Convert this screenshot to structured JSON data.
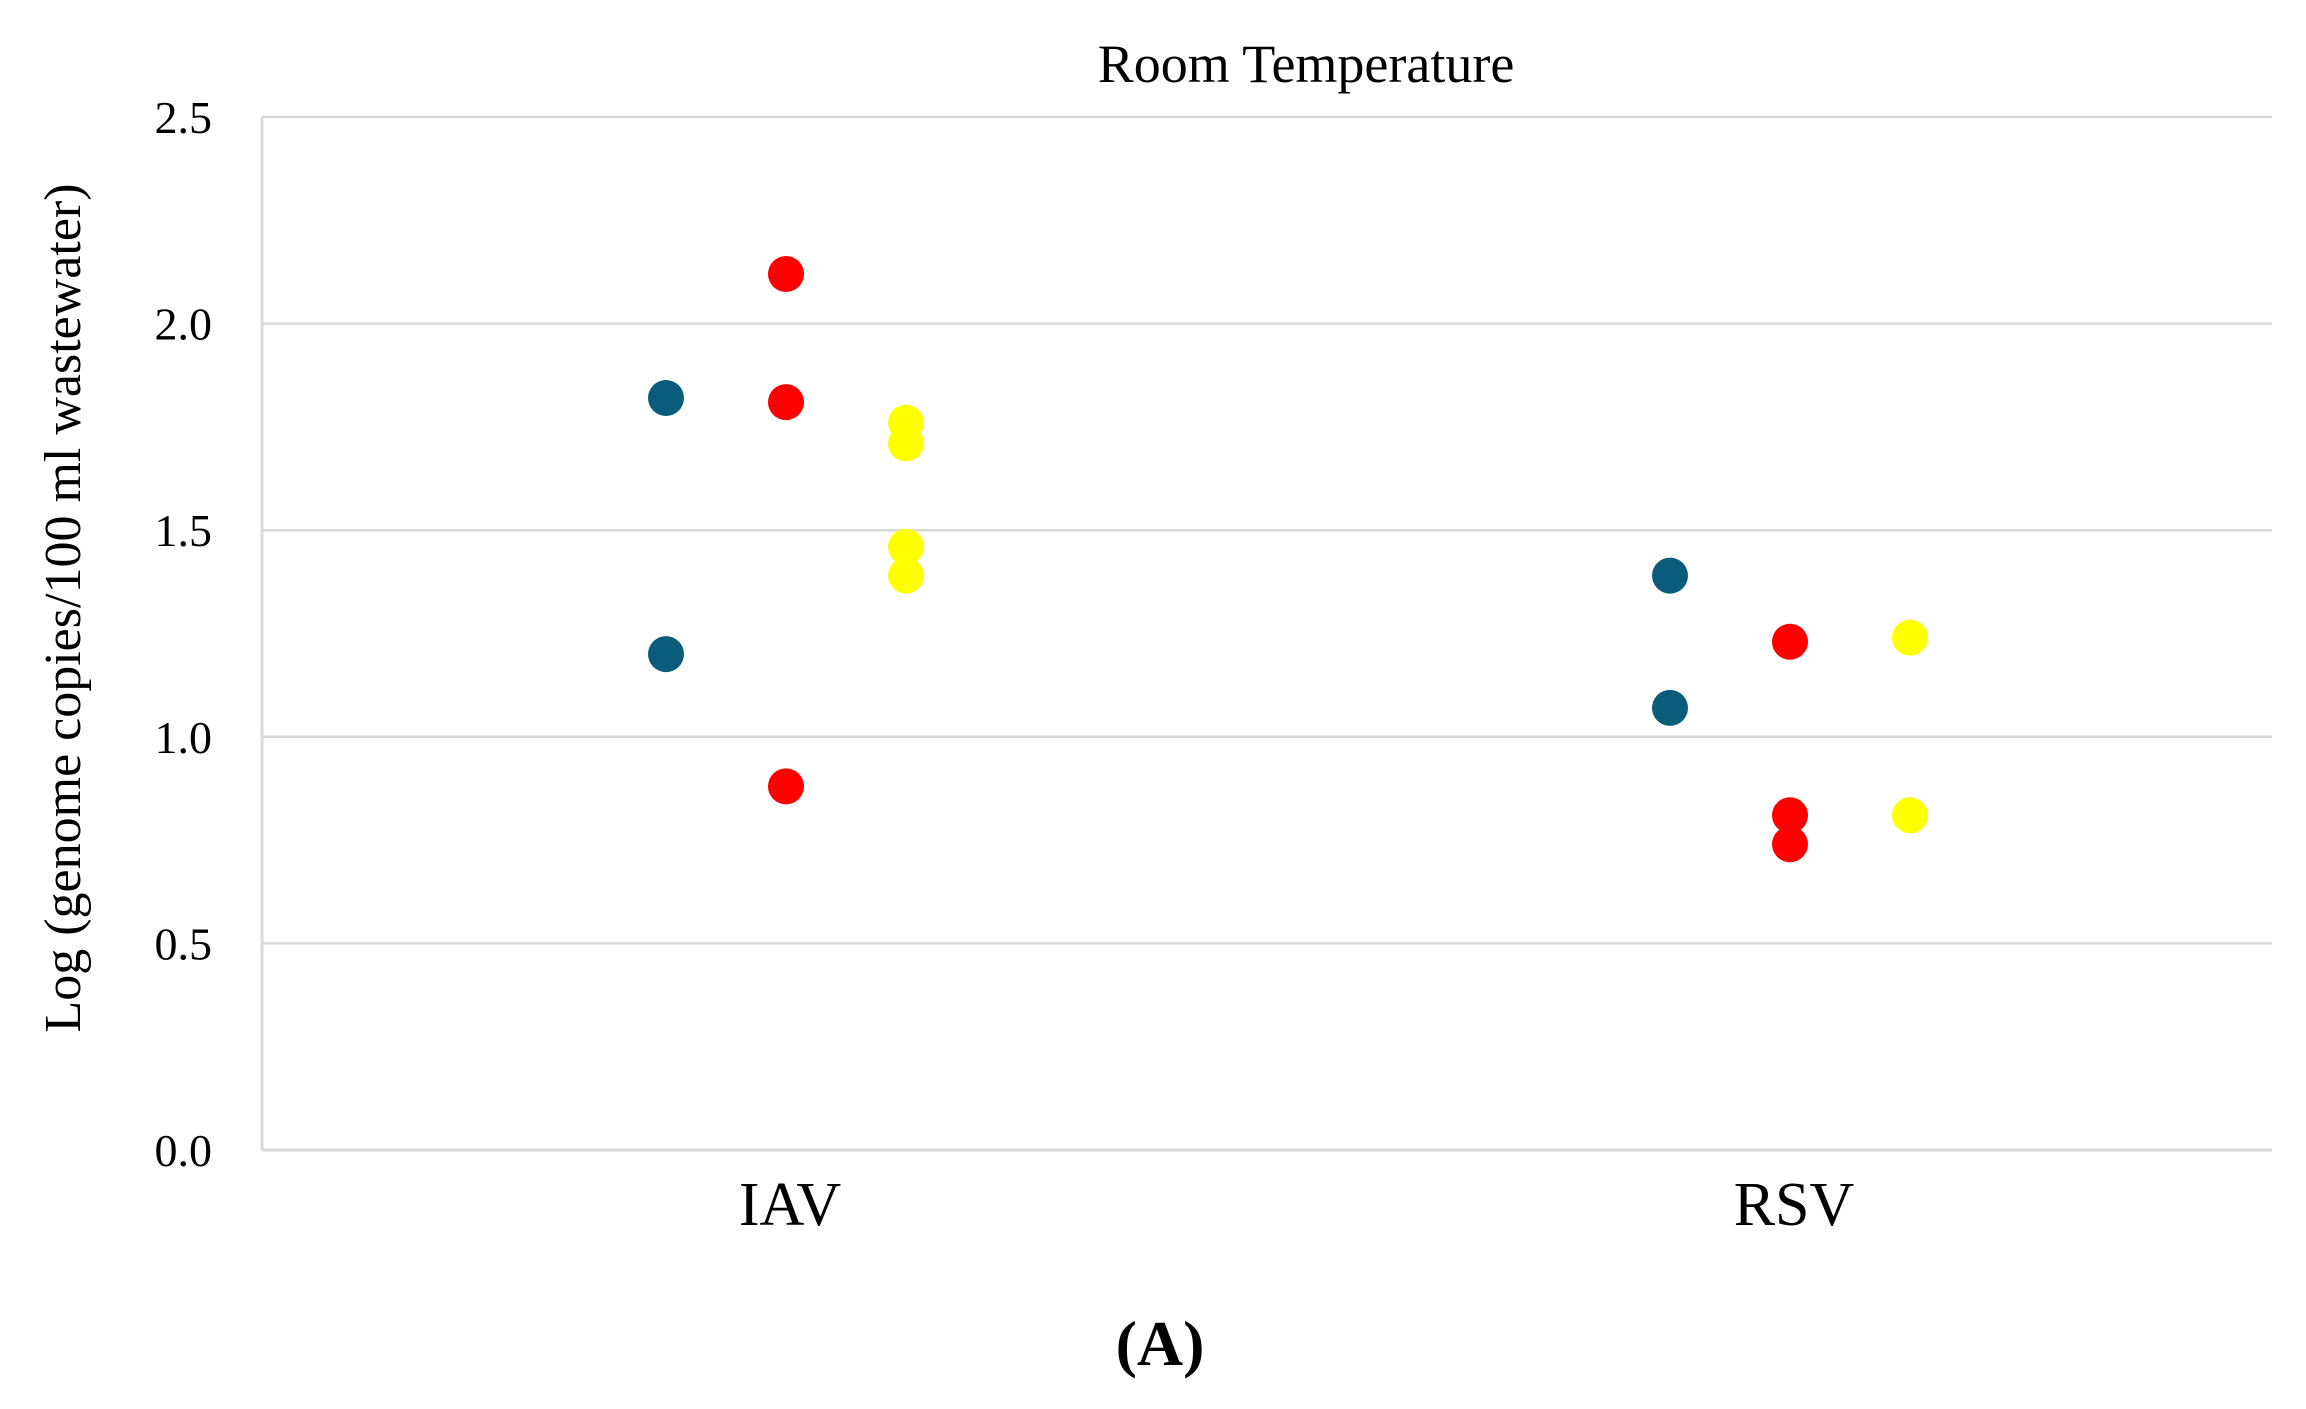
{
  "chart_data": {
    "type": "scatter",
    "title": "Room Temperature",
    "panel_label": "(A)",
    "xlabel": "",
    "ylabel": "Log (genome copies/100 ml wastewater)",
    "categories": [
      "IAV",
      "RSV"
    ],
    "ylim": [
      0.0,
      2.5
    ],
    "yticks": [
      0.0,
      0.5,
      1.0,
      1.5,
      2.0,
      2.5
    ],
    "ytick_labels": [
      "0.0",
      "0.5",
      "1.0",
      "1.5",
      "2.0",
      "2.5"
    ],
    "grid": true,
    "legend": "none",
    "series": [
      {
        "color": "#0b5c7a",
        "points": [
          {
            "category": "IAV",
            "y": 1.82
          },
          {
            "category": "IAV",
            "y": 1.2
          },
          {
            "category": "RSV",
            "y": 1.39
          },
          {
            "category": "RSV",
            "y": 1.07
          }
        ]
      },
      {
        "color": "#ff0000",
        "points": [
          {
            "category": "IAV",
            "y": 2.12
          },
          {
            "category": "IAV",
            "y": 1.81
          },
          {
            "category": "IAV",
            "y": 0.88
          },
          {
            "category": "RSV",
            "y": 1.23
          },
          {
            "category": "RSV",
            "y": 0.81
          },
          {
            "category": "RSV",
            "y": 0.74
          }
        ]
      },
      {
        "color": "#ffff00",
        "points": [
          {
            "category": "IAV",
            "y": 1.76
          },
          {
            "category": "IAV",
            "y": 1.71
          },
          {
            "category": "IAV",
            "y": 1.46
          },
          {
            "category": "IAV",
            "y": 1.39
          },
          {
            "category": "RSV",
            "y": 1.24
          },
          {
            "category": "RSV",
            "y": 0.81
          }
        ]
      }
    ]
  }
}
